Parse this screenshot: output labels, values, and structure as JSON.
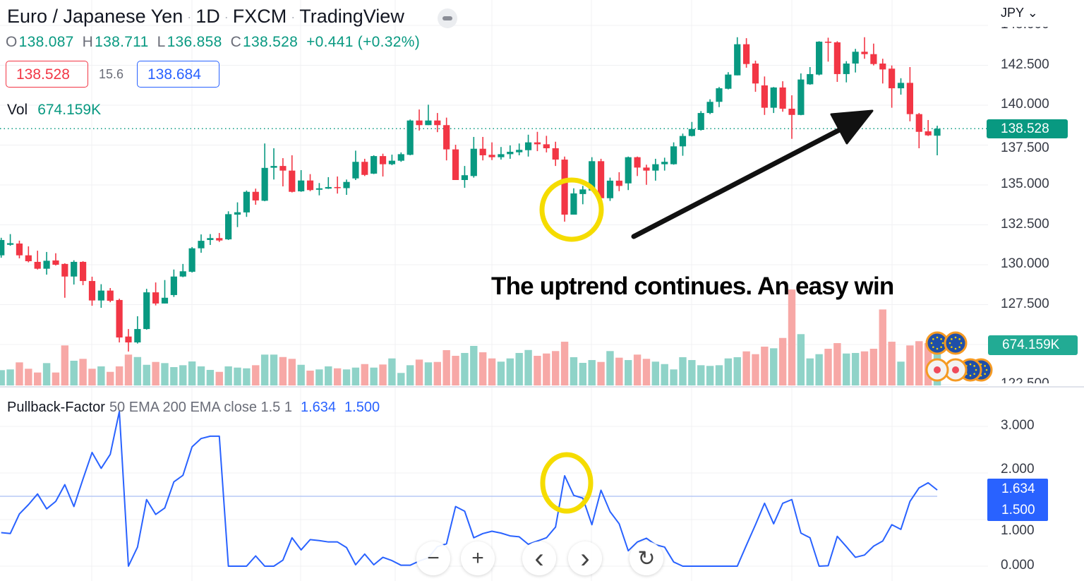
{
  "header": {
    "symbol_name": "Euro / Japanese Yen",
    "interval": "1D",
    "exchange": "FXCM",
    "source": "TradingView",
    "sep": "·"
  },
  "ohlc": {
    "o_label": "O",
    "o": "138.087",
    "h_label": "H",
    "h": "138.711",
    "l_label": "L",
    "l": "136.858",
    "c_label": "C",
    "c": "138.528",
    "change": "+0.441 (+0.32%)"
  },
  "trade": {
    "bid": "138.528",
    "spread": "15.6",
    "ask": "138.684"
  },
  "volume_legend": {
    "label": "Vol",
    "value": "674.159K"
  },
  "currency": "JPY ⌄",
  "price_axis": [
    "145.000",
    "142.500",
    "140.000",
    "137.500",
    "135.000",
    "132.500",
    "130.000",
    "127.500",
    "122.500"
  ],
  "last_price_tag": "138.528",
  "volume_tag": "674.159K",
  "indicator": {
    "name": "Pullback-Factor",
    "params": "50 EMA 200 EMA close 1.5 1",
    "value1": "1.634",
    "value2": "1.500",
    "axis": [
      "3.000",
      "2.000",
      "1.000",
      "0.000"
    ]
  },
  "annotation_text": "The uptrend continues. An easy win",
  "nav_buttons": {
    "zoom_out": "−",
    "zoom_in": "+",
    "back": "‹",
    "forward": "›",
    "reset": "↻"
  },
  "colors": {
    "up": "#089981",
    "down": "#f23645",
    "up_volume": "#8fd3c8",
    "down_volume": "#f7a8a6",
    "indicator": "#2962ff",
    "highlight": "#f5dc00",
    "arrow": "#111111"
  },
  "chart_data": [
    {
      "type": "candlestick",
      "title": "Euro / Japanese Yen · 1D · FXCM",
      "ylabel": "JPY",
      "ylim": [
        122.5,
        145
      ],
      "grid": true,
      "candles_ohlc": [
        [
          130.59,
          131.69,
          130.44,
          131.55
        ],
        [
          131.25,
          131.92,
          131.19,
          131.35
        ],
        [
          131.33,
          131.51,
          130.4,
          130.59
        ],
        [
          130.59,
          131.15,
          130.15,
          130.22
        ],
        [
          130.18,
          130.88,
          129.7,
          129.75
        ],
        [
          129.75,
          130.8,
          129.38,
          130.25
        ],
        [
          130.27,
          130.72,
          129.95,
          130.0
        ],
        [
          130.05,
          130.09,
          127.93,
          129.26
        ],
        [
          129.26,
          130.28,
          128.76,
          130.18
        ],
        [
          130.18,
          130.22,
          128.72,
          128.98
        ],
        [
          128.98,
          129.25,
          127.43,
          127.76
        ],
        [
          127.76,
          128.78,
          127.3,
          128.38
        ],
        [
          128.38,
          128.54,
          127.65,
          127.74
        ],
        [
          127.79,
          127.87,
          125.13,
          125.44
        ],
        [
          125.5,
          125.97,
          124.56,
          125.13
        ],
        [
          125.13,
          126.77,
          125.06,
          125.97
        ],
        [
          125.97,
          128.49,
          125.93,
          128.27
        ],
        [
          128.27,
          128.89,
          127.45,
          127.57
        ],
        [
          127.57,
          129.04,
          127.57,
          127.93
        ],
        [
          128.1,
          129.7,
          127.98,
          129.26
        ],
        [
          129.26,
          130.05,
          129.22,
          129.59
        ],
        [
          129.56,
          131.11,
          129.51,
          131.03
        ],
        [
          131.03,
          131.9,
          130.75,
          131.5
        ],
        [
          131.55,
          131.92,
          131.24,
          131.67
        ],
        [
          131.67,
          131.99,
          131.43,
          131.52
        ],
        [
          131.59,
          133.35,
          131.55,
          133.17
        ],
        [
          133.14,
          133.91,
          132.36,
          133.29
        ],
        [
          133.28,
          134.65,
          133.0,
          134.57
        ],
        [
          134.57,
          134.77,
          133.76,
          134.03
        ],
        [
          134.01,
          137.6,
          133.98,
          136.07
        ],
        [
          136.08,
          137.3,
          135.34,
          136.19
        ],
        [
          136.19,
          136.68,
          134.91,
          135.9
        ],
        [
          135.9,
          136.86,
          134.53,
          134.57
        ],
        [
          134.6,
          135.93,
          134.57,
          135.28
        ],
        [
          135.28,
          135.68,
          134.61,
          134.68
        ],
        [
          134.7,
          135.12,
          134.35,
          134.79
        ],
        [
          134.77,
          135.49,
          134.75,
          134.87
        ],
        [
          134.87,
          135.53,
          134.46,
          134.8
        ],
        [
          134.8,
          135.34,
          134.38,
          135.19
        ],
        [
          135.41,
          137.15,
          135.31,
          136.45
        ],
        [
          136.45,
          136.64,
          135.56,
          135.63
        ],
        [
          135.71,
          136.86,
          135.68,
          136.81
        ],
        [
          136.81,
          136.96,
          135.53,
          136.3
        ],
        [
          136.3,
          136.9,
          136.24,
          136.52
        ],
        [
          136.52,
          137.04,
          136.45,
          136.93
        ],
        [
          136.89,
          139.1,
          136.86,
          139.04
        ],
        [
          139.04,
          139.73,
          138.41,
          138.75
        ],
        [
          138.75,
          140.03,
          138.75,
          139.04
        ],
        [
          139.04,
          139.51,
          138.31,
          138.75
        ],
        [
          138.75,
          139.22,
          136.54,
          137.23
        ],
        [
          137.23,
          137.52,
          135.31,
          135.31
        ],
        [
          135.31,
          136.19,
          134.82,
          135.61
        ],
        [
          135.56,
          138.01,
          135.46,
          137.27
        ],
        [
          137.27,
          138.01,
          136.54,
          136.86
        ],
        [
          136.89,
          137.67,
          136.56,
          136.74
        ],
        [
          136.74,
          137.38,
          136.59,
          136.93
        ],
        [
          136.93,
          137.48,
          136.64,
          137.08
        ],
        [
          137.05,
          137.6,
          136.86,
          137.2
        ],
        [
          137.18,
          138.15,
          136.78,
          137.67
        ],
        [
          137.67,
          138.33,
          137.12,
          137.55
        ],
        [
          137.55,
          138.08,
          137.04,
          137.3
        ],
        [
          137.3,
          137.71,
          136.19,
          136.59
        ],
        [
          136.59,
          136.78,
          132.7,
          133.14
        ],
        [
          133.14,
          134.79,
          133.14,
          134.47
        ],
        [
          134.43,
          134.94,
          133.79,
          134.72
        ],
        [
          134.65,
          136.74,
          134.65,
          136.49
        ],
        [
          136.49,
          136.64,
          134.08,
          134.17
        ],
        [
          134.17,
          135.46,
          134.0,
          135.27
        ],
        [
          135.27,
          135.8,
          134.61,
          134.94
        ],
        [
          135.1,
          136.78,
          134.68,
          136.74
        ],
        [
          136.74,
          136.78,
          135.56,
          136.09
        ],
        [
          136.09,
          136.27,
          135.01,
          135.9
        ],
        [
          135.9,
          136.64,
          135.27,
          136.3
        ],
        [
          136.3,
          136.71,
          135.9,
          136.45
        ],
        [
          136.3,
          137.67,
          136.27,
          137.42
        ],
        [
          137.42,
          138.22,
          136.83,
          138.07
        ],
        [
          138.07,
          138.95,
          138.04,
          138.51
        ],
        [
          138.45,
          139.63,
          138.41,
          139.51
        ],
        [
          139.51,
          140.37,
          139.44,
          140.21
        ],
        [
          140.21,
          141.14,
          139.88,
          141.06
        ],
        [
          141.03,
          142.07,
          140.99,
          141.92
        ],
        [
          141.87,
          144.26,
          141.87,
          143.82
        ],
        [
          143.82,
          144.2,
          142.35,
          142.58
        ],
        [
          142.61,
          142.79,
          140.84,
          141.36
        ],
        [
          141.24,
          141.8,
          139.39,
          139.84
        ],
        [
          139.84,
          141.14,
          139.51,
          141.11
        ],
        [
          141.11,
          141.5,
          139.59,
          139.78
        ],
        [
          139.78,
          140.62,
          137.89,
          139.39
        ],
        [
          139.39,
          141.99,
          139.37,
          141.61
        ],
        [
          141.31,
          142.39,
          141.28,
          141.95
        ],
        [
          141.92,
          144.01,
          141.87,
          143.98
        ],
        [
          143.98,
          144.23,
          142.73,
          143.91
        ],
        [
          143.94,
          144.01,
          141.46,
          141.95
        ],
        [
          141.95,
          142.76,
          141.43,
          142.61
        ],
        [
          142.61,
          143.53,
          142.05,
          143.35
        ],
        [
          143.35,
          144.26,
          142.91,
          143.2
        ],
        [
          143.2,
          143.86,
          142.49,
          142.58
        ],
        [
          142.61,
          142.91,
          141.36,
          142.24
        ],
        [
          142.29,
          142.49,
          139.84,
          141.06
        ],
        [
          141.06,
          141.69,
          140.66,
          141.4
        ],
        [
          141.4,
          142.39,
          138.99,
          139.44
        ],
        [
          139.44,
          139.51,
          137.3,
          138.33
        ],
        [
          138.36,
          139.07,
          138.07,
          138.11
        ],
        [
          138.087,
          138.711,
          136.858,
          138.528
        ]
      ],
      "last_price": 138.528
    },
    {
      "type": "bar",
      "ylabel": "Vol (K)",
      "values": [
        252,
        264,
        380,
        275,
        213,
        368,
        213,
        659,
        407,
        438,
        275,
        314,
        224,
        314,
        508,
        468,
        340,
        387,
        368,
        302,
        333,
        395,
        314,
        256,
        224,
        314,
        294,
        282,
        333,
        508,
        508,
        468,
        438,
        340,
        244,
        264,
        314,
        282,
        264,
        294,
        352,
        294,
        345,
        445,
        206,
        333,
        426,
        380,
        387,
        581,
        488,
        535,
        651,
        546,
        445,
        392,
        445,
        535,
        584,
        488,
        526,
        566,
        720,
        465,
        372,
        418,
        387,
        566,
        457,
        418,
        508,
        438,
        392,
        352,
        264,
        465,
        418,
        333,
        322,
        333,
        445,
        465,
        561,
        515,
        639,
        612,
        782,
        1580,
        845,
        445,
        515,
        604,
        697,
        526,
        535,
        561,
        604,
        1251,
        720,
        392,
        659,
        729,
        697,
        674.159
      ]
    },
    {
      "type": "line",
      "series": [
        {
          "name": "Pullback-Factor",
          "values": [
            0.72,
            0.7,
            1.12,
            1.32,
            1.55,
            1.23,
            1.39,
            1.75,
            1.28,
            1.87,
            2.44,
            2.1,
            2.4,
            3.32,
            0,
            0.41,
            1.43,
            1.11,
            1.25,
            1.81,
            1.95,
            2.56,
            2.74,
            2.79,
            2.79,
            0,
            0,
            0,
            0.22,
            0,
            0,
            0.13,
            0.61,
            0.35,
            0.57,
            0.55,
            0.52,
            0.52,
            0.4,
            0.03,
            0.26,
            0.03,
            0.19,
            0.12,
            0.02,
            0.02,
            0.11,
            0.18,
            0.42,
            0.48,
            1.28,
            1.18,
            0.61,
            0.7,
            0.75,
            0.71,
            0.65,
            0.63,
            0.47,
            0.54,
            0.61,
            0.84,
            1.94,
            1.52,
            1.46,
            0.89,
            1.63,
            1.17,
            0.91,
            0.33,
            0.52,
            0.6,
            0.46,
            0.41,
            0.09,
            0,
            0,
            0,
            0,
            0,
            0,
            0,
            0.45,
            0.89,
            1.35,
            0.91,
            1.35,
            1.43,
            0.71,
            0.61,
            0,
            0.01,
            0.64,
            0.42,
            0.19,
            0.24,
            0.43,
            0.54,
            0.89,
            0.79,
            1.39,
            1.68,
            1.79,
            1.634
          ]
        }
      ],
      "threshold": 1.5,
      "ylim": [
        0,
        3.3
      ],
      "grid": true
    }
  ]
}
